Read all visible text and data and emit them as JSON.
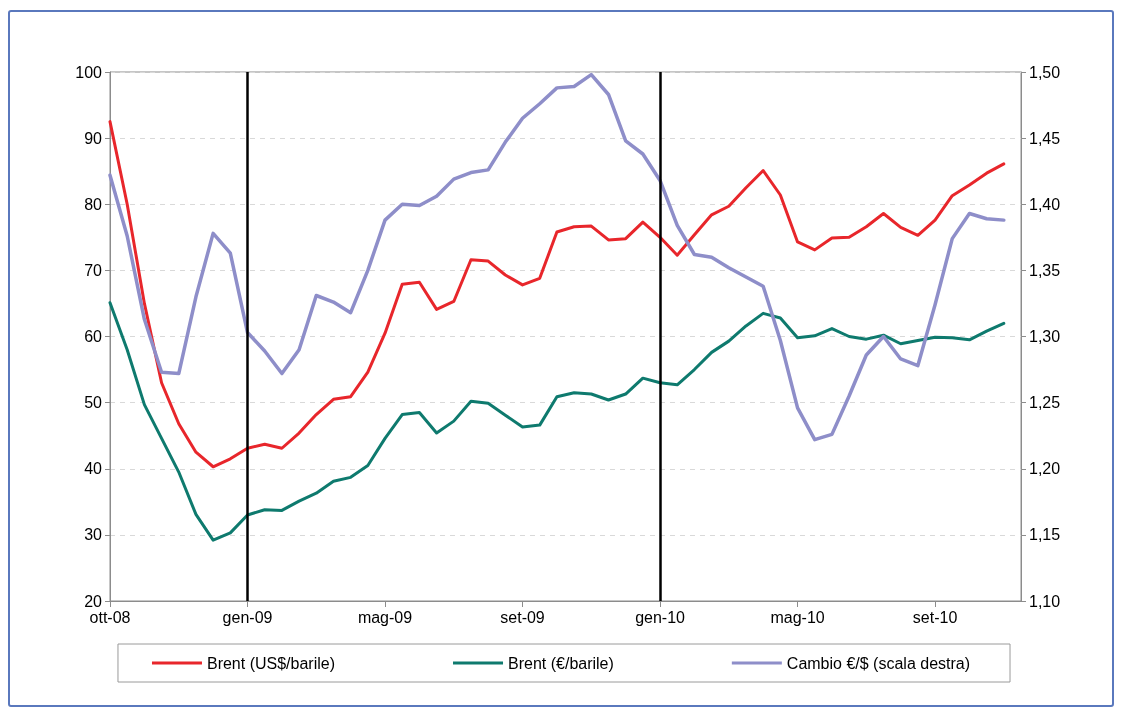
{
  "chart_data": {
    "type": "line",
    "categories": [
      "ott-08",
      null,
      null,
      null,
      null,
      null,
      null,
      null,
      "gen-09",
      null,
      null,
      null,
      null,
      null,
      null,
      null,
      "mag-09",
      null,
      null,
      null,
      null,
      null,
      null,
      null,
      "set-09",
      null,
      null,
      null,
      null,
      null,
      null,
      null,
      "gen-10",
      null,
      null,
      null,
      null,
      null,
      null,
      null,
      "mag-10",
      null,
      null,
      null,
      null,
      null,
      null,
      null,
      "set-10",
      null,
      null,
      null,
      null,
      null
    ],
    "series": [
      {
        "name": "Brent (US$/barile)",
        "color": "#e8262b",
        "values": [
          92.5,
          80,
          65,
          53,
          46.8,
          42.5,
          40.3,
          41.5,
          43.1,
          43.7,
          43.1,
          45.4,
          48.2,
          50.5,
          50.9,
          54.6,
          60.5,
          67.9,
          68.2,
          64.1,
          65.3,
          71.6,
          71.4,
          69.3,
          67.8,
          68.8,
          75.8,
          76.6,
          76.7,
          74.6,
          74.8,
          77.3,
          75.0,
          72.3,
          75.4,
          78.4,
          79.7,
          82.5,
          85.1,
          81.4,
          74.3,
          73.1,
          74.9,
          75.0,
          76.6,
          78.6,
          76.5,
          75.3,
          77.6,
          81.3,
          82.9,
          84.7,
          86.1,
          null
        ]
      },
      {
        "name": "Brent (€/barile)",
        "color": "#0e7a6e",
        "values": [
          65.1,
          58.0,
          49.7,
          44.6,
          39.5,
          33.1,
          29.2,
          30.3,
          33.0,
          33.8,
          33.7,
          35.1,
          36.3,
          38.1,
          38.7,
          40.5,
          44.6,
          48.2,
          48.5,
          45.4,
          47.2,
          50.2,
          49.9,
          48.1,
          46.3,
          46.6,
          50.9,
          51.5,
          51.3,
          50.4,
          51.3,
          53.7,
          53.0,
          52.7,
          55.0,
          57.6,
          59.3,
          61.6,
          63.5,
          62.8,
          59.8,
          60.1,
          61.2,
          60.0,
          59.6,
          60.2,
          58.9,
          59.4,
          59.9,
          59.8,
          59.5,
          60.8,
          62.0,
          null
        ]
      },
      {
        "name": "Cambio €/$ (scala destra)",
        "color": "#8e8ec9",
        "axis": "y2",
        "values": [
          1.422,
          1.376,
          1.313,
          1.273,
          1.272,
          1.33,
          1.378,
          1.363,
          1.303,
          1.289,
          1.272,
          1.29,
          1.331,
          1.326,
          1.318,
          1.35,
          1.388,
          1.4,
          1.399,
          1.406,
          1.419,
          1.424,
          1.426,
          1.447,
          1.465,
          1.476,
          1.488,
          1.489,
          1.498,
          1.483,
          1.448,
          1.438,
          1.418,
          1.384,
          1.362,
          1.36,
          1.352,
          1.345,
          1.338,
          1.297,
          1.246,
          1.222,
          1.226,
          1.255,
          1.286,
          1.3,
          1.283,
          1.278,
          1.324,
          1.374,
          1.393,
          1.389,
          1.388,
          null
        ]
      }
    ],
    "ylim": [
      20,
      100
    ],
    "yticks": [
      20,
      30,
      40,
      50,
      60,
      70,
      80,
      90,
      100
    ],
    "y2lim": [
      1.1,
      1.5
    ],
    "y2ticks": [
      {
        "value": 1.1,
        "label": "1,10"
      },
      {
        "value": 1.15,
        "label": "1,15"
      },
      {
        "value": 1.2,
        "label": "1,20"
      },
      {
        "value": 1.25,
        "label": "1,25"
      },
      {
        "value": 1.3,
        "label": "1,30"
      },
      {
        "value": 1.35,
        "label": "1,35"
      },
      {
        "value": 1.4,
        "label": "1,40"
      },
      {
        "value": 1.45,
        "label": "1,45"
      },
      {
        "value": 1.5,
        "label": "1,50"
      }
    ],
    "grid": "y",
    "legend": "bottom",
    "marker": "none",
    "line_style": "solid",
    "ref_lines": [
      {
        "axis": "x",
        "value": "gen-09",
        "color": "#000000"
      },
      {
        "axis": "x",
        "value": "gen-10",
        "color": "#000000"
      }
    ]
  }
}
